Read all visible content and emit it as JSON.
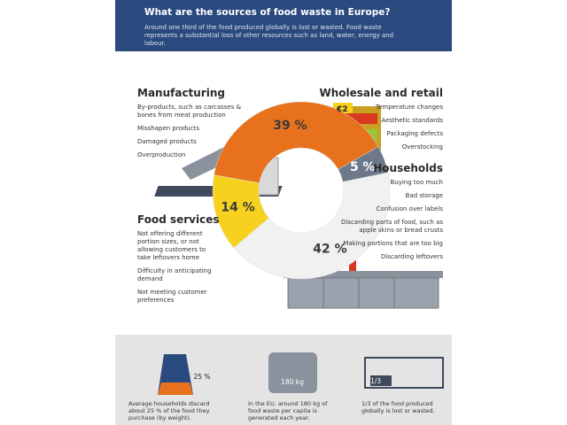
{
  "header": {
    "title": "What are the sources of food waste in Europe?",
    "subtitle": "Around one third of the food produced globally is lost or wasted. Food waste represents a substantial loss of other resources such as land, water, energy and labour."
  },
  "chart_data": {
    "type": "pie",
    "categories": [
      "Manufacturing",
      "Wholesale and retail",
      "Households",
      "Food services"
    ],
    "values": [
      39,
      5,
      42,
      14
    ],
    "value_labels": [
      "39 %",
      "5 %",
      "42 %",
      "14 %"
    ],
    "colors": [
      "#e8711d",
      "#6d7889",
      "#f1f1f1",
      "#f6d21f"
    ]
  },
  "sections": [
    {
      "items": [
        "By-products, such as carcasses & bones from meat production",
        "Misshapen products",
        "Damaged products",
        "Overproduction"
      ]
    },
    {
      "items": [
        "Temperature changes",
        "Aesthetic standards",
        "Packaging defects",
        "Overstocking"
      ]
    },
    {
      "items": [
        "Buying too much",
        "Bad storage",
        "Confusion over labels",
        "Discarding parts of food, such as apple skins or bread crusts",
        "Making portions that are too big",
        "Discarding leftovers"
      ]
    },
    {
      "items": [
        "Not offering different portion sizes, or not allowing customers to take leftovers home",
        "Difficulty in anticipating demand",
        "Not meeting customer preferences"
      ]
    }
  ],
  "price_tag": "€2",
  "stats": [
    {
      "badge": "25 %",
      "text": "Average households discard about 25 % of the food they purchase (by weight)."
    },
    {
      "badge": "180 kg",
      "text": "In the EU, around 180 kg of food waste per capita is generated each year."
    },
    {
      "badge": "1/3",
      "text": "1/3 of the food produced globally is lost or wasted."
    }
  ]
}
